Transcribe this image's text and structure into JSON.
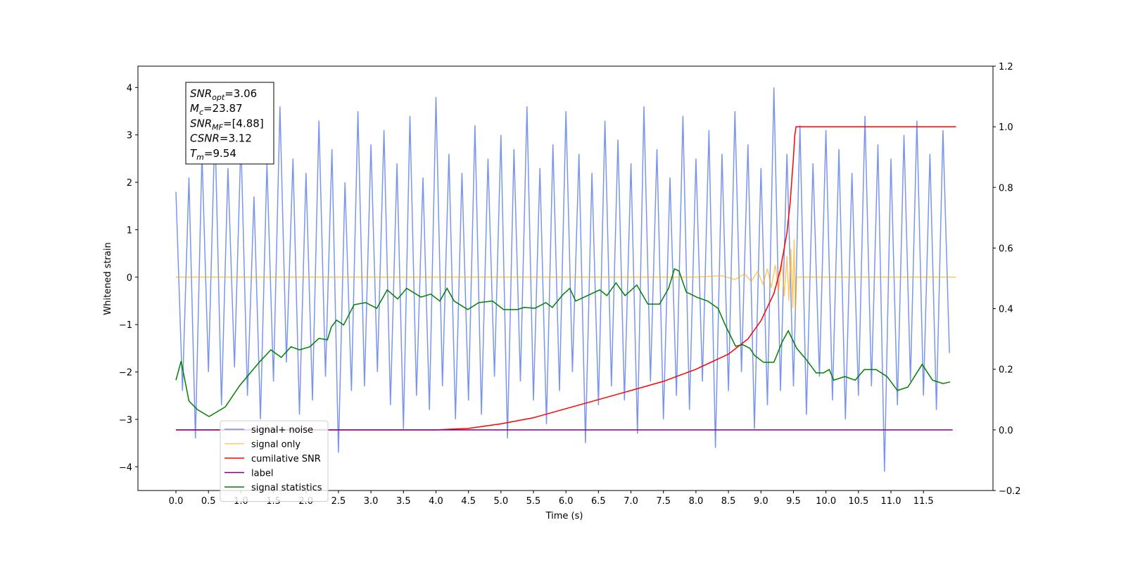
{
  "chart_data": {
    "type": "line",
    "xlabel": "Time (s)",
    "ylabel": "Whitened strain",
    "xlim": [
      -0.585,
      12.57
    ],
    "ylim": [
      -4.5,
      4.45
    ],
    "y2lim": [
      -0.2,
      1.2
    ],
    "xticks": [
      {
        "value": 0,
        "label": "0.0"
      },
      {
        "value": 0.5,
        "label": "0.5"
      },
      {
        "value": 1,
        "label": "1.0"
      },
      {
        "value": 1.5,
        "label": "1.5"
      },
      {
        "value": 2,
        "label": "2.0"
      },
      {
        "value": 2.5,
        "label": "2.5"
      },
      {
        "value": 3,
        "label": "3.0"
      },
      {
        "value": 3.5,
        "label": "3.5"
      },
      {
        "value": 4,
        "label": "4.0"
      },
      {
        "value": 4.5,
        "label": "4.5"
      },
      {
        "value": 5,
        "label": "5.0"
      },
      {
        "value": 5.5,
        "label": "5.5"
      },
      {
        "value": 6,
        "label": "6.0"
      },
      {
        "value": 6.5,
        "label": "6.5"
      },
      {
        "value": 7,
        "label": "7.0"
      },
      {
        "value": 7.5,
        "label": "7.5"
      },
      {
        "value": 8,
        "label": "8.0"
      },
      {
        "value": 8.5,
        "label": "8.5"
      },
      {
        "value": 9,
        "label": "9.0"
      },
      {
        "value": 9.5,
        "label": "9.5"
      },
      {
        "value": 10,
        "label": "10.0"
      },
      {
        "value": 10.5,
        "label": "10.5"
      },
      {
        "value": 11,
        "label": "11.0"
      },
      {
        "value": 11.5,
        "label": "11.5"
      }
    ],
    "yticks": [
      {
        "value": -4,
        "label": "−4"
      },
      {
        "value": -3,
        "label": "−3"
      },
      {
        "value": -2,
        "label": "−2"
      },
      {
        "value": -1,
        "label": "−1"
      },
      0,
      1,
      2,
      3,
      4
    ],
    "y2ticks": [
      {
        "value": -0.2,
        "label": "−0.2"
      },
      {
        "value": 0,
        "label": "0.0"
      },
      0.2,
      0.4,
      0.6,
      0.8,
      {
        "value": 1,
        "label": "1.0"
      },
      1.2
    ],
    "legend": "lower left",
    "annotation": [
      {
        "symbol": "SNR",
        "sub": "opt",
        "text": "=3.06"
      },
      {
        "symbol": "M",
        "sub": "c",
        "text": "=23.87"
      },
      {
        "symbol": "SNR",
        "sub": "MF",
        "text": "=[4.88]"
      },
      {
        "symbol": "CSNR",
        "text": "=3.12"
      },
      {
        "symbol": "T",
        "sub": "m",
        "text": "=9.54"
      }
    ],
    "series": [
      {
        "name": "signal+ noise",
        "color": "#4169e1",
        "alpha": 0.7,
        "axis": "y",
        "x": [
          0.0,
          0.1,
          0.2,
          0.3,
          0.4,
          0.5,
          0.6,
          0.7,
          0.8,
          0.9,
          1.0,
          1.1,
          1.2,
          1.3,
          1.4,
          1.5,
          1.6,
          1.7,
          1.8,
          1.9,
          2.0,
          2.1,
          2.2,
          2.3,
          2.4,
          2.5,
          2.6,
          2.7,
          2.8,
          2.9,
          3.0,
          3.1,
          3.2,
          3.3,
          3.4,
          3.5,
          3.6,
          3.7,
          3.8,
          3.9,
          4.0,
          4.1,
          4.2,
          4.3,
          4.4,
          4.5,
          4.6,
          4.7,
          4.8,
          4.9,
          5.0,
          5.1,
          5.2,
          5.3,
          5.4,
          5.5,
          5.6,
          5.7,
          5.8,
          5.9,
          6.0,
          6.1,
          6.2,
          6.3,
          6.4,
          6.5,
          6.6,
          6.7,
          6.8,
          6.9,
          7.0,
          7.1,
          7.2,
          7.3,
          7.4,
          7.5,
          7.6,
          7.7,
          7.8,
          7.9,
          8.0,
          8.1,
          8.2,
          8.3,
          8.4,
          8.5,
          8.6,
          8.7,
          8.8,
          8.9,
          9.0,
          9.1,
          9.2,
          9.3,
          9.4,
          9.5,
          9.6,
          9.7,
          9.8,
          9.9,
          10.0,
          10.1,
          10.2,
          10.3,
          10.4,
          10.5,
          10.6,
          10.7,
          10.8,
          10.9,
          11.0,
          11.1,
          11.2,
          11.3,
          11.4,
          11.5,
          11.6,
          11.7,
          11.8,
          11.9
        ],
        "values": [
          1.8,
          -2.4,
          2.1,
          -3.4,
          2.6,
          -2.0,
          3.2,
          -2.7,
          2.3,
          -1.9,
          2.9,
          -2.5,
          1.7,
          -3.0,
          2.4,
          -2.2,
          3.6,
          -1.8,
          2.5,
          -2.9,
          2.2,
          -2.6,
          3.3,
          -2.1,
          2.7,
          -3.7,
          2.0,
          -2.4,
          3.5,
          -2.3,
          2.8,
          -2.0,
          3.1,
          -2.7,
          2.4,
          -3.2,
          3.4,
          -2.5,
          2.1,
          -2.8,
          3.8,
          -2.3,
          2.6,
          -3.0,
          2.2,
          -2.6,
          3.2,
          -2.9,
          2.5,
          -2.1,
          3.0,
          -3.4,
          2.7,
          -2.2,
          3.6,
          -2.6,
          2.3,
          -3.1,
          2.8,
          -2.4,
          3.5,
          -2.0,
          2.6,
          -3.5,
          2.2,
          -2.7,
          3.3,
          -2.3,
          2.9,
          -2.6,
          2.4,
          -3.3,
          3.6,
          -2.2,
          2.7,
          -3.0,
          2.1,
          -2.5,
          3.4,
          -2.8,
          2.5,
          -2.2,
          3.1,
          -3.6,
          2.6,
          -2.4,
          3.5,
          -2.0,
          2.8,
          -3.2,
          2.3,
          -2.7,
          4.0,
          -2.4,
          2.6,
          -2.3,
          3.2,
          -2.9,
          2.4,
          -2.1,
          3.1,
          -2.6,
          2.7,
          -3.0,
          2.2,
          -2.5,
          3.4,
          -2.3,
          2.8,
          -4.1,
          2.5,
          -2.7,
          3.0,
          -2.2,
          3.3,
          -2.5,
          2.6,
          -2.8,
          3.1,
          -1.6
        ]
      },
      {
        "name": "signal only",
        "color": "#ffa500",
        "alpha": 0.6,
        "axis": "y",
        "x": [
          0,
          8.0,
          8.4,
          8.6,
          8.75,
          8.85,
          8.95,
          9.03,
          9.1,
          9.16,
          9.22,
          9.27,
          9.32,
          9.36,
          9.4,
          9.43,
          9.46,
          9.49,
          9.51,
          9.53,
          9.55,
          12.0
        ],
        "values": [
          0,
          0,
          0.03,
          -0.05,
          0.07,
          -0.09,
          0.12,
          -0.15,
          0.18,
          -0.22,
          0.26,
          -0.3,
          0.35,
          -0.4,
          0.45,
          -0.5,
          0.6,
          -0.65,
          0.8,
          -0.7,
          0,
          0
        ]
      },
      {
        "name": "cumilative SNR",
        "color": "#ff0000",
        "alpha": 1,
        "axis": "y2",
        "x": [
          0,
          4,
          4.5,
          5,
          5.5,
          6,
          6.5,
          7,
          7.5,
          8,
          8.5,
          8.8,
          9,
          9.2,
          9.3,
          9.4,
          9.45,
          9.5,
          9.52,
          9.54,
          12.0
        ],
        "values": [
          0,
          0,
          0.005,
          0.02,
          0.04,
          0.07,
          0.1,
          0.13,
          0.16,
          0.2,
          0.25,
          0.3,
          0.36,
          0.45,
          0.53,
          0.65,
          0.75,
          0.9,
          0.97,
          1.0,
          1.0
        ]
      },
      {
        "name": "label",
        "color": "#800080",
        "alpha": 1,
        "axis": "y2",
        "x": [
          0,
          11.95
        ],
        "values": [
          0,
          0
        ]
      },
      {
        "name": "signal statistics",
        "color": "#008000",
        "alpha": 1,
        "axis": "y2",
        "x": [
          0.0,
          0.08,
          0.2,
          0.33,
          0.51,
          0.76,
          0.98,
          1.28,
          1.46,
          1.62,
          1.77,
          1.9,
          2.06,
          2.2,
          2.33,
          2.39,
          2.47,
          2.58,
          2.74,
          2.92,
          3.09,
          3.25,
          3.41,
          3.55,
          3.77,
          3.92,
          4.06,
          4.17,
          4.28,
          4.49,
          4.66,
          4.87,
          5.04,
          5.25,
          5.36,
          5.52,
          5.69,
          5.79,
          5.96,
          6.06,
          6.15,
          6.33,
          6.52,
          6.63,
          6.77,
          6.91,
          7.09,
          7.26,
          7.44,
          7.58,
          7.67,
          7.74,
          7.85,
          8.01,
          8.18,
          8.34,
          8.45,
          8.61,
          8.72,
          8.83,
          8.9,
          9.04,
          9.2,
          9.33,
          9.42,
          9.55,
          9.69,
          9.85,
          9.96,
          10.05,
          10.12,
          10.29,
          10.45,
          10.59,
          10.77,
          10.94,
          11.1,
          11.26,
          11.48,
          11.64,
          11.8,
          11.91
        ],
        "values": [
          0.164,
          0.227,
          0.095,
          0.067,
          0.044,
          0.076,
          0.146,
          0.223,
          0.264,
          0.239,
          0.274,
          0.264,
          0.274,
          0.302,
          0.297,
          0.339,
          0.362,
          0.346,
          0.413,
          0.42,
          0.401,
          0.462,
          0.432,
          0.467,
          0.438,
          0.448,
          0.425,
          0.467,
          0.425,
          0.397,
          0.42,
          0.425,
          0.397,
          0.397,
          0.404,
          0.401,
          0.42,
          0.404,
          0.448,
          0.467,
          0.425,
          0.443,
          0.462,
          0.443,
          0.485,
          0.443,
          0.478,
          0.415,
          0.415,
          0.467,
          0.531,
          0.524,
          0.455,
          0.438,
          0.425,
          0.401,
          0.346,
          0.276,
          0.281,
          0.269,
          0.246,
          0.223,
          0.223,
          0.292,
          0.327,
          0.269,
          0.234,
          0.188,
          0.188,
          0.199,
          0.164,
          0.176,
          0.164,
          0.199,
          0.199,
          0.176,
          0.13,
          0.141,
          0.216,
          0.164,
          0.153,
          0.158
        ]
      }
    ]
  }
}
